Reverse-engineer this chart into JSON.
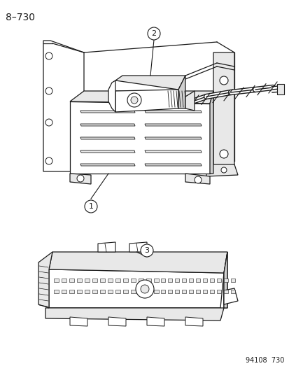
{
  "background_color": "#ffffff",
  "page_label": "8–730",
  "footer_text": "94108  730",
  "title_fontsize": 10,
  "footer_fontsize": 7,
  "callout_fontsize": 8,
  "line_color": "#1a1a1a",
  "face_color": "#ffffff",
  "shade_light": "#e8e8e8",
  "shade_mid": "#d0d0d0"
}
